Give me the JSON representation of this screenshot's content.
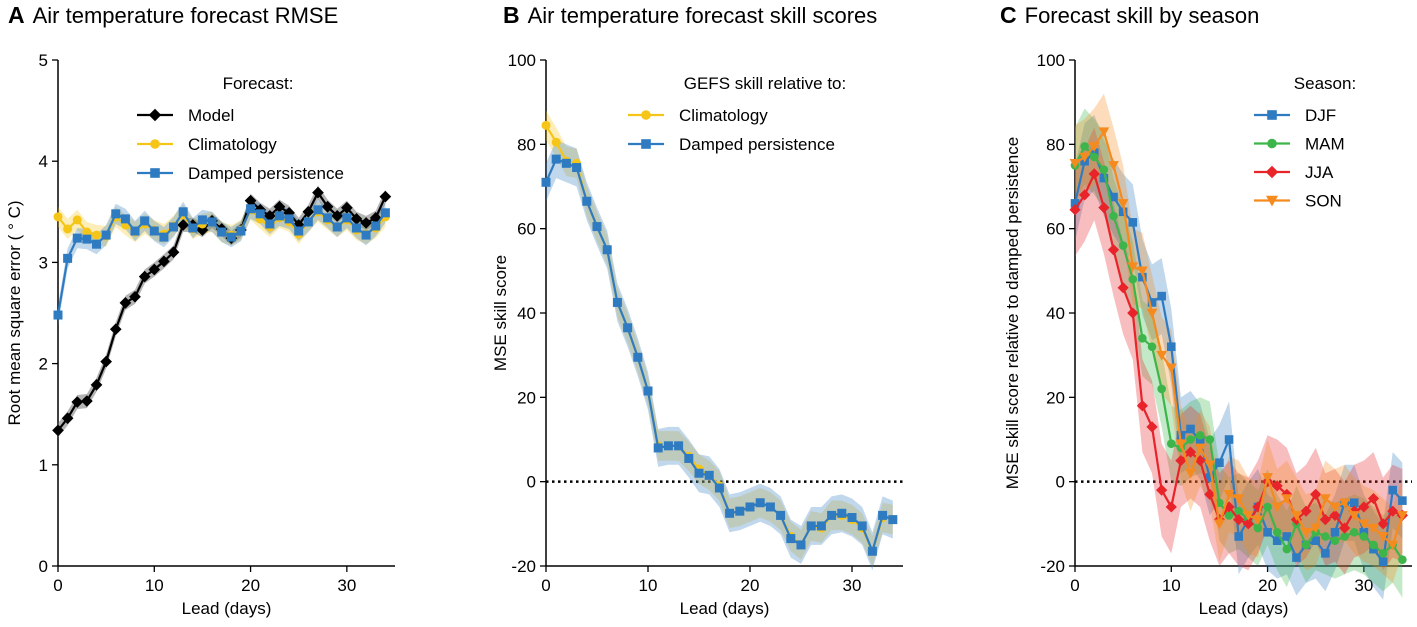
{
  "figure": {
    "colors": {
      "model": "#000000",
      "climatology": "#F5C518",
      "damped": "#2F7BC1",
      "djf": "#2F7BC1",
      "mam": "#3DB54A",
      "jja": "#E8232A",
      "son": "#F58A1F"
    }
  },
  "chart_data": [
    {
      "id": "A",
      "type": "line",
      "panel_letter": "A",
      "title": "Air temperature forecast RMSE",
      "xlabel": "Lead (days)",
      "ylabel": "Root mean square error ( ° C)",
      "xlim": [
        0,
        35
      ],
      "ylim": [
        0,
        5
      ],
      "xticks": [
        0,
        10,
        20,
        30
      ],
      "yticks": [
        0,
        1,
        2,
        3,
        4,
        5
      ],
      "legend_title": "Forecast:",
      "legend_position": "top-right",
      "series": [
        {
          "name": "Model",
          "key": "model",
          "marker": "diamond",
          "band": 0.07,
          "x": [
            0,
            1,
            2,
            3,
            4,
            5,
            6,
            7,
            8,
            9,
            10,
            11,
            12,
            13,
            14,
            15,
            16,
            17,
            18,
            19,
            20,
            21,
            22,
            23,
            24,
            25,
            26,
            27,
            28,
            29,
            30,
            31,
            32,
            33,
            34
          ],
          "values": [
            1.34,
            1.46,
            1.62,
            1.63,
            1.79,
            2.02,
            2.34,
            2.6,
            2.66,
            2.86,
            2.93,
            3.01,
            3.1,
            3.37,
            3.37,
            3.32,
            3.41,
            3.33,
            3.24,
            3.32,
            3.61,
            3.52,
            3.46,
            3.55,
            3.49,
            3.37,
            3.5,
            3.69,
            3.55,
            3.46,
            3.54,
            3.43,
            3.39,
            3.44,
            3.65
          ]
        },
        {
          "name": "Climatology",
          "key": "climatology",
          "marker": "circle",
          "band": 0.1,
          "x": [
            0,
            1,
            2,
            3,
            4,
            5,
            6,
            7,
            8,
            9,
            10,
            11,
            12,
            13,
            14,
            15,
            16,
            17,
            18,
            19,
            20,
            21,
            22,
            23,
            24,
            25,
            26,
            27,
            28,
            29,
            30,
            31,
            32,
            33,
            34
          ],
          "values": [
            3.45,
            3.33,
            3.42,
            3.3,
            3.27,
            3.26,
            3.45,
            3.37,
            3.3,
            3.38,
            3.32,
            3.28,
            3.36,
            3.47,
            3.33,
            3.38,
            3.4,
            3.3,
            3.27,
            3.32,
            3.52,
            3.43,
            3.35,
            3.44,
            3.4,
            3.28,
            3.4,
            3.5,
            3.42,
            3.35,
            3.42,
            3.32,
            3.28,
            3.34,
            3.45
          ]
        },
        {
          "name": "Damped persistence",
          "key": "damped",
          "marker": "square",
          "band": 0.1,
          "x": [
            0,
            1,
            2,
            3,
            4,
            5,
            6,
            7,
            8,
            9,
            10,
            11,
            12,
            13,
            14,
            15,
            16,
            17,
            18,
            19,
            20,
            21,
            22,
            23,
            24,
            25,
            26,
            27,
            28,
            29,
            30,
            31,
            32,
            33,
            34
          ],
          "values": [
            2.48,
            3.04,
            3.24,
            3.23,
            3.18,
            3.27,
            3.48,
            3.43,
            3.31,
            3.41,
            3.31,
            3.25,
            3.35,
            3.5,
            3.34,
            3.42,
            3.4,
            3.3,
            3.25,
            3.31,
            3.53,
            3.48,
            3.38,
            3.46,
            3.43,
            3.31,
            3.4,
            3.52,
            3.44,
            3.35,
            3.44,
            3.34,
            3.27,
            3.36,
            3.49
          ]
        }
      ]
    },
    {
      "id": "B",
      "type": "line",
      "panel_letter": "B",
      "title": "Air temperature forecast skill scores",
      "xlabel": "Lead (days)",
      "ylabel": "MSE skill score",
      "xlim": [
        0,
        35
      ],
      "ylim": [
        -20,
        100
      ],
      "xticks": [
        0,
        10,
        20,
        30
      ],
      "yticks": [
        -20,
        0,
        20,
        40,
        60,
        80,
        100
      ],
      "reference_line": 0,
      "legend_title": "GEFS skill relative to:",
      "legend_position": "top-right",
      "series": [
        {
          "name": "Climatology",
          "key": "climatology",
          "marker": "circle",
          "band": 3.5,
          "x": [
            0,
            1,
            2,
            3,
            4,
            5,
            6,
            7,
            8,
            9,
            10,
            11,
            12,
            13,
            14,
            15,
            16,
            17,
            18,
            19,
            20,
            21,
            22,
            23,
            24,
            25,
            26,
            27,
            28,
            29,
            30,
            31,
            32,
            33,
            34
          ],
          "values": [
            84.5,
            80.5,
            76,
            75.5,
            66.5,
            60.5,
            55,
            42.5,
            36.5,
            29.5,
            21.5,
            8.5,
            8.5,
            8.5,
            6,
            3,
            1.5,
            -1,
            -7.5,
            -7,
            -6,
            -5,
            -6,
            -8,
            -13,
            -15,
            -10.5,
            -11,
            -8,
            -8,
            -9,
            -11,
            -16.5,
            -8.5,
            -9
          ]
        },
        {
          "name": "Damped persistence",
          "key": "damped",
          "marker": "square",
          "band": 4.5,
          "x": [
            0,
            1,
            2,
            3,
            4,
            5,
            6,
            7,
            8,
            9,
            10,
            11,
            12,
            13,
            14,
            15,
            16,
            17,
            18,
            19,
            20,
            21,
            22,
            23,
            24,
            25,
            26,
            27,
            28,
            29,
            30,
            31,
            32,
            33,
            34
          ],
          "values": [
            71,
            76.5,
            75.5,
            74.5,
            66.5,
            60.5,
            55,
            42.5,
            36.5,
            29.5,
            21.5,
            8,
            8.5,
            8.5,
            5.5,
            2,
            1.5,
            -1.5,
            -7.5,
            -7,
            -6,
            -5,
            -6,
            -8,
            -13.5,
            -15,
            -10.5,
            -10.5,
            -8,
            -7.5,
            -8.5,
            -10.5,
            -16.5,
            -8,
            -9
          ]
        }
      ]
    },
    {
      "id": "C",
      "type": "line",
      "panel_letter": "C",
      "title": "Forecast skill by season",
      "xlabel": "Lead (days)",
      "ylabel": "MSE skill score relative to damped persistence",
      "xlim": [
        0,
        35
      ],
      "ylim": [
        -20,
        100
      ],
      "xticks": [
        0,
        10,
        20,
        30
      ],
      "yticks": [
        -20,
        0,
        20,
        40,
        60,
        80,
        100
      ],
      "reference_line": 0,
      "legend_title": "Season:",
      "legend_position": "top-right",
      "series": [
        {
          "name": "DJF",
          "key": "djf",
          "marker": "square",
          "band": 9,
          "x": [
            0,
            1,
            2,
            3,
            4,
            5,
            6,
            7,
            8,
            9,
            10,
            11,
            12,
            13,
            14,
            15,
            16,
            17,
            18,
            19,
            20,
            21,
            22,
            23,
            24,
            25,
            26,
            27,
            28,
            29,
            30,
            31,
            32,
            33,
            34
          ],
          "values": [
            66,
            76,
            78,
            72,
            67.5,
            64,
            61.5,
            48.5,
            42.5,
            44,
            32,
            11,
            12.5,
            9.5,
            1,
            4.5,
            10,
            -13,
            -9,
            -6,
            -12,
            -14,
            -13,
            -18,
            -15,
            -14,
            -17,
            -12,
            -5,
            -5,
            -12,
            -16,
            -19,
            -2,
            -4.5
          ]
        },
        {
          "name": "MAM",
          "key": "mam",
          "marker": "circle",
          "band": 9,
          "x": [
            0,
            1,
            2,
            3,
            4,
            5,
            6,
            7,
            8,
            9,
            10,
            11,
            12,
            13,
            14,
            15,
            16,
            17,
            18,
            19,
            20,
            21,
            22,
            23,
            24,
            25,
            26,
            27,
            28,
            29,
            30,
            31,
            32,
            33,
            34
          ],
          "values": [
            75,
            79.5,
            77,
            74,
            63,
            56,
            48,
            34,
            32,
            22,
            9,
            8,
            10,
            11,
            10,
            -5,
            -8,
            -7,
            -9,
            -11,
            -6,
            -12,
            -16,
            -10,
            -15,
            -12,
            -13,
            -14,
            -13,
            -12,
            -13,
            -15,
            -17,
            -15,
            -18.5
          ]
        },
        {
          "name": "JJA",
          "key": "jja",
          "marker": "diamond",
          "band": 11,
          "x": [
            0,
            1,
            2,
            3,
            4,
            5,
            6,
            7,
            8,
            9,
            10,
            11,
            12,
            13,
            14,
            15,
            16,
            17,
            18,
            19,
            20,
            21,
            22,
            23,
            24,
            25,
            26,
            27,
            28,
            29,
            30,
            31,
            32,
            33,
            34
          ],
          "values": [
            64.5,
            68,
            73,
            65,
            55,
            46,
            40,
            18,
            13,
            -2,
            -6,
            5,
            7,
            5,
            -3,
            -9,
            -6,
            -9,
            -10,
            -6,
            0,
            -1,
            -3,
            -9,
            -7,
            -3,
            -9,
            -8,
            -11,
            -7,
            -6,
            -4,
            -10,
            -7,
            -8
          ]
        },
        {
          "name": "SON",
          "key": "son",
          "marker": "triangle-down",
          "band": 9,
          "x": [
            0,
            1,
            2,
            3,
            4,
            5,
            6,
            7,
            8,
            9,
            10,
            11,
            12,
            13,
            14,
            15,
            16,
            17,
            18,
            19,
            20,
            21,
            22,
            23,
            24,
            25,
            26,
            27,
            28,
            29,
            30,
            31,
            32,
            33,
            34
          ],
          "values": [
            75.5,
            77,
            79.5,
            83,
            75,
            66,
            51,
            50,
            40,
            30,
            27,
            9,
            2,
            8,
            4,
            -10,
            -3,
            -4,
            -8,
            -9,
            1,
            -6,
            -4,
            -8,
            -12,
            -11,
            -4,
            -6,
            -5,
            -8,
            -10,
            -11,
            -13,
            -15,
            -8
          ]
        }
      ]
    }
  ]
}
